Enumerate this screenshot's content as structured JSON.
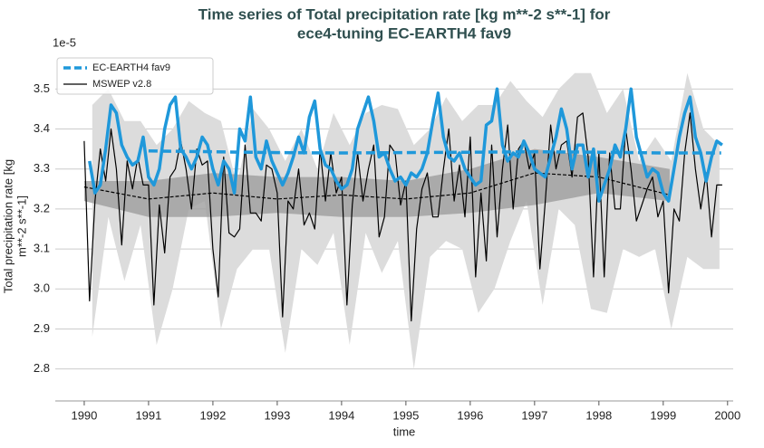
{
  "chart_data": {
    "type": "line",
    "title": [
      "Time series of Total precipitation rate [kg m**-2 s**-1] for",
      "ece4-tuning EC-EARTH4 fav9"
    ],
    "offset_label": "1e-5",
    "ylabel": [
      "Total precipitation rate [kg",
      "m**-2 s**-1]"
    ],
    "xlabel": "time",
    "xlim": [
      1989.55,
      2000.2
    ],
    "xticks": [
      1990,
      1991,
      1992,
      1993,
      1994,
      1995,
      1996,
      1997,
      1998,
      1999,
      2000
    ],
    "ylim": [
      2.72,
      3.58
    ],
    "yticks": [
      2.8,
      2.9,
      {
        "value": 3,
        "label": "3.0"
      },
      3.1,
      3.2,
      3.3,
      3.4,
      3.5
    ],
    "grid": true,
    "legend": "upper-left",
    "x": [
      1990,
      1990.083,
      1990.167,
      1990.25,
      1990.333,
      1990.417,
      1990.5,
      1990.583,
      1990.667,
      1990.75,
      1990.833,
      1990.917,
      1991,
      1991.083,
      1991.167,
      1991.25,
      1991.333,
      1991.417,
      1991.5,
      1991.583,
      1991.667,
      1991.75,
      1991.833,
      1991.917,
      1992,
      1992.083,
      1992.167,
      1992.25,
      1992.333,
      1992.417,
      1992.5,
      1992.583,
      1992.667,
      1992.75,
      1992.833,
      1992.917,
      1993,
      1993.083,
      1993.167,
      1993.25,
      1993.333,
      1993.417,
      1993.5,
      1993.583,
      1993.667,
      1993.75,
      1993.833,
      1993.917,
      1994,
      1994.083,
      1994.167,
      1994.25,
      1994.333,
      1994.417,
      1994.5,
      1994.583,
      1994.667,
      1994.75,
      1994.833,
      1994.917,
      1995,
      1995.083,
      1995.167,
      1995.25,
      1995.333,
      1995.417,
      1995.5,
      1995.583,
      1995.667,
      1995.75,
      1995.833,
      1995.917,
      1996,
      1996.083,
      1996.167,
      1996.25,
      1996.333,
      1996.417,
      1996.5,
      1996.583,
      1996.667,
      1996.75,
      1996.833,
      1996.917,
      1997,
      1997.083,
      1997.167,
      1997.25,
      1997.333,
      1997.417,
      1997.5,
      1997.583,
      1997.667,
      1997.75,
      1997.833,
      1997.917,
      1998,
      1998.083,
      1998.167,
      1998.25,
      1998.333,
      1998.417,
      1998.5,
      1998.583,
      1998.667,
      1998.75,
      1998.833,
      1998.917,
      1999,
      1999.083,
      1999.167,
      1999.25,
      1999.333,
      1999.417,
      1999.5,
      1999.583,
      1999.667,
      1999.75,
      1999.833,
      1999.917
    ],
    "series": [
      {
        "name": "EC-EARTH4 fav9",
        "color": "#1f98da",
        "values": [
          null,
          3.32,
          3.24,
          3.26,
          3.35,
          3.46,
          3.44,
          3.36,
          3.33,
          3.31,
          3.32,
          3.38,
          3.28,
          3.26,
          3.3,
          3.4,
          3.46,
          3.48,
          3.35,
          3.33,
          3.3,
          3.33,
          3.38,
          3.36,
          3.3,
          3.26,
          3.32,
          3.3,
          3.24,
          3.4,
          3.37,
          3.48,
          3.33,
          3.3,
          3.37,
          3.32,
          3.29,
          3.26,
          3.29,
          3.33,
          3.38,
          3.34,
          3.43,
          3.47,
          3.35,
          3.31,
          3.3,
          3.27,
          3.25,
          3.26,
          3.3,
          3.4,
          3.44,
          3.48,
          3.42,
          3.33,
          3.34,
          3.3,
          3.27,
          3.28,
          3.26,
          3.29,
          3.28,
          3.3,
          3.34,
          3.42,
          3.49,
          3.38,
          3.33,
          3.32,
          3.34,
          3.3,
          3.28,
          3.26,
          3.27,
          3.41,
          3.42,
          3.5,
          3.36,
          3.32,
          3.34,
          3.33,
          3.37,
          3.34,
          3.3,
          3.29,
          3.28,
          3.33,
          3.38,
          3.45,
          3.4,
          3.3,
          3.36,
          3.36,
          3.28,
          3.35,
          3.22,
          3.26,
          3.3,
          3.36,
          3.33,
          3.4,
          3.5,
          3.38,
          3.33,
          3.28,
          3.3,
          3.29,
          3.24,
          3.22,
          3.3,
          3.38,
          3.44,
          3.48,
          3.38,
          3.34,
          3.27,
          3.33,
          3.37,
          3.36
        ]
      },
      {
        "name": "MSWEP v2.8",
        "color": "#000000",
        "values": [
          3.37,
          2.97,
          3.22,
          3.35,
          3.27,
          3.4,
          3.3,
          3.11,
          3.32,
          3.25,
          3.33,
          3.26,
          3.26,
          2.96,
          3.21,
          3.09,
          3.28,
          3.3,
          3.37,
          3.3,
          3.2,
          3.35,
          3.31,
          3.32,
          3.1,
          2.98,
          3.33,
          3.14,
          3.13,
          3.15,
          3.36,
          3.19,
          3.19,
          3.17,
          3.31,
          3.3,
          3.24,
          2.93,
          3.22,
          3.2,
          3.3,
          3.16,
          3.19,
          3.15,
          3.35,
          3.22,
          3.34,
          3.24,
          3.28,
          2.96,
          3.21,
          3.34,
          3.22,
          3.3,
          3.36,
          3.13,
          3.18,
          3.36,
          3.34,
          3.21,
          3.27,
          2.92,
          3.15,
          3.25,
          3.29,
          3.18,
          3.18,
          3.3,
          3.4,
          3.22,
          3.31,
          3.18,
          3.38,
          3.03,
          3.24,
          3.07,
          3.36,
          3.13,
          3.3,
          3.41,
          3.2,
          3.35,
          3.37,
          3.3,
          3.34,
          3.05,
          3.22,
          3.41,
          3.3,
          3.36,
          3.37,
          3.28,
          3.43,
          3.44,
          3.33,
          3.03,
          3.34,
          3.03,
          3.34,
          3.2,
          3.2,
          3.4,
          3.3,
          3.17,
          3.21,
          3.25,
          3.28,
          3.18,
          3.22,
          2.99,
          3.2,
          3.17,
          3.34,
          3.44,
          3.3,
          3.2,
          3.29,
          3.13,
          3.26,
          3.26
        ]
      }
    ],
    "trends": [
      {
        "color": "#1f98da",
        "x": [
          1991,
          1992,
          1993,
          1994,
          1995,
          1996,
          1997,
          1998,
          1999,
          1999.9
        ],
        "values": [
          3.345,
          3.343,
          3.341,
          3.34,
          3.341,
          3.342,
          3.343,
          3.342,
          3.34,
          3.34
        ]
      },
      {
        "color": "#000000",
        "x": [
          1990,
          1991,
          1992,
          1993,
          1994,
          1995,
          1996,
          1997,
          1998,
          1999.1
        ],
        "values": [
          3.255,
          3.225,
          3.24,
          3.225,
          3.235,
          3.225,
          3.24,
          3.29,
          3.28,
          3.235
        ]
      }
    ],
    "bands": [
      {
        "color": "#dcdcdc",
        "x": [
          1990.125,
          1990.375,
          1990.625,
          1990.875,
          1991.125,
          1991.375,
          1991.625,
          1991.875,
          1992.125,
          1992.375,
          1992.625,
          1992.875,
          1993.125,
          1993.375,
          1993.625,
          1993.875,
          1994.125,
          1994.375,
          1994.625,
          1994.875,
          1995.125,
          1995.375,
          1995.625,
          1995.875,
          1996.125,
          1996.375,
          1996.625,
          1996.875,
          1997.125,
          1997.375,
          1997.625,
          1997.875,
          1998.125,
          1998.375,
          1998.625,
          1998.875,
          1999.125,
          1999.375,
          1999.625,
          1999.875
        ],
        "lower": [
          2.88,
          3.18,
          3.02,
          3.16,
          2.86,
          3.0,
          3.2,
          3.22,
          2.9,
          3.05,
          3.1,
          3.1,
          2.84,
          3.1,
          3.06,
          3.14,
          2.86,
          3.14,
          3.04,
          3.12,
          2.8,
          3.08,
          3.12,
          3.1,
          2.94,
          3.0,
          3.12,
          3.22,
          2.96,
          3.2,
          3.16,
          2.95,
          2.94,
          3.1,
          3.08,
          3.1,
          2.9,
          3.08,
          3.05,
          3.05
        ],
        "upper": [
          3.46,
          3.5,
          3.42,
          3.42,
          3.36,
          3.4,
          3.47,
          3.44,
          3.42,
          3.26,
          3.45,
          3.4,
          3.32,
          3.4,
          3.3,
          3.44,
          3.36,
          3.44,
          3.46,
          3.45,
          3.36,
          3.4,
          3.48,
          3.42,
          3.46,
          3.46,
          3.52,
          3.47,
          3.43,
          3.5,
          3.54,
          3.54,
          3.44,
          3.5,
          3.32,
          3.38,
          3.32,
          3.54,
          3.4,
          3.36
        ]
      },
      {
        "color": "#9e9e9e",
        "x": [
          1990,
          1991,
          1992,
          1993,
          1994,
          1995,
          1996,
          1997,
          1998,
          1999.1
        ],
        "lower": [
          3.22,
          3.18,
          3.18,
          3.19,
          3.18,
          3.18,
          3.19,
          3.21,
          3.24,
          3.22
        ],
        "upper": [
          3.27,
          3.27,
          3.29,
          3.28,
          3.28,
          3.27,
          3.3,
          3.35,
          3.33,
          3.3
        ]
      }
    ]
  }
}
